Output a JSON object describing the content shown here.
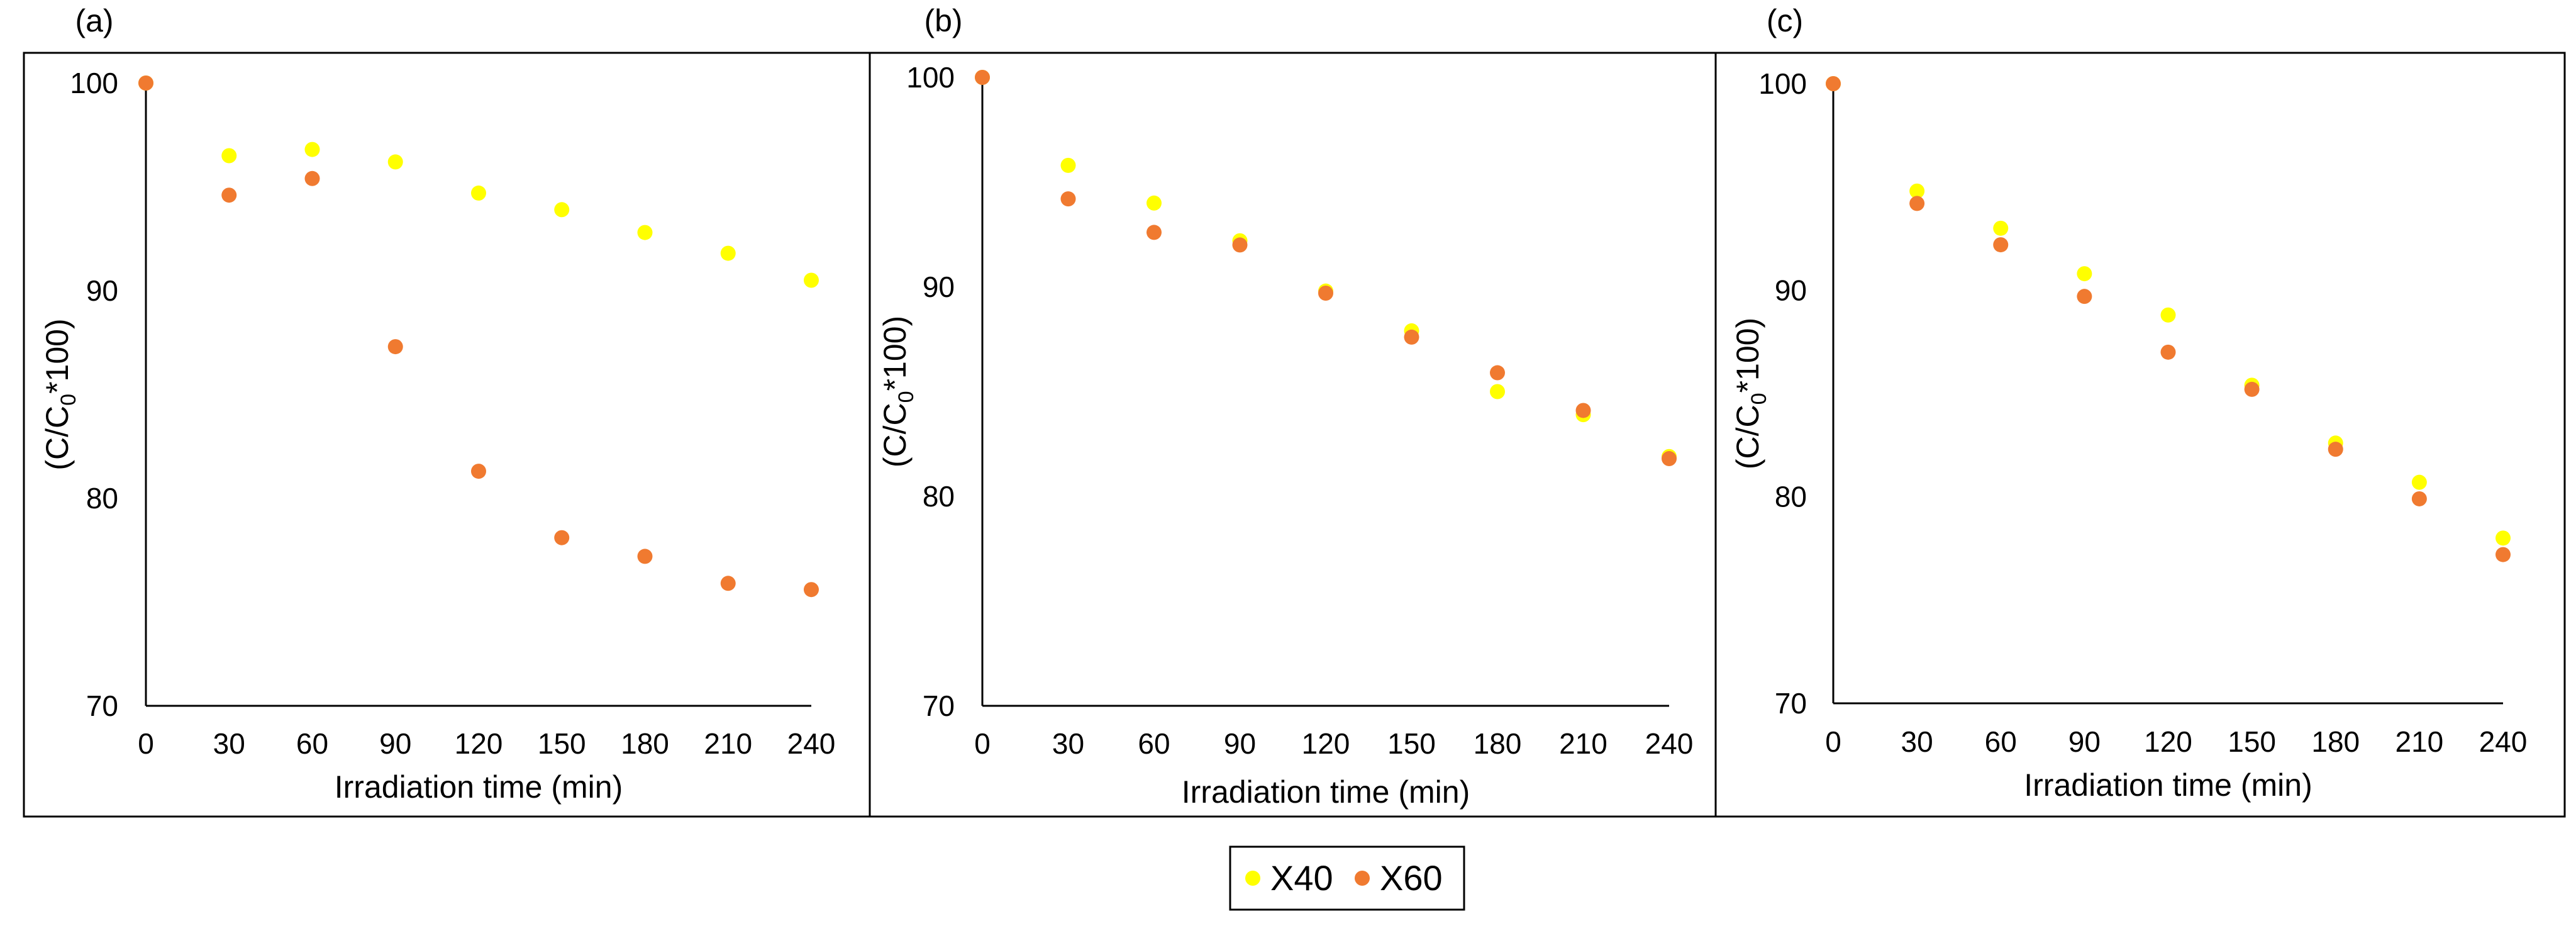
{
  "chart_data": [
    {
      "panel": "(a)",
      "type": "scatter",
      "xlabel": "Irradiation time (min)",
      "ylabel": "(C/C0*100)",
      "xlim": [
        0,
        240
      ],
      "ylim": [
        70,
        100
      ],
      "xticks": [
        "0",
        "30",
        "60",
        "90",
        "120",
        "150",
        "180",
        "210",
        "240"
      ],
      "yticks": [
        "70",
        "80",
        "90",
        "100"
      ],
      "x": [
        0,
        30,
        60,
        90,
        120,
        150,
        180,
        210,
        240
      ],
      "series": [
        {
          "name": "X40",
          "color": "#FFFF00",
          "values": [
            100,
            96.5,
            96.8,
            96.2,
            94.7,
            93.9,
            92.8,
            91.8,
            90.5
          ]
        },
        {
          "name": "X60",
          "color": "#F07A30",
          "values": [
            100,
            94.6,
            95.4,
            87.3,
            81.3,
            78.1,
            77.2,
            75.9,
            75.6
          ]
        }
      ]
    },
    {
      "panel": "(b)",
      "type": "scatter",
      "xlabel": "Irradiation time (min)",
      "ylabel": "(C/C0*100)",
      "xlim": [
        0,
        240
      ],
      "ylim": [
        70,
        100
      ],
      "xticks": [
        "0",
        "30",
        "60",
        "90",
        "120",
        "150",
        "180",
        "210",
        "240"
      ],
      "yticks": [
        "70",
        "80",
        "90",
        "100"
      ],
      "x": [
        0,
        30,
        60,
        90,
        120,
        150,
        180,
        210,
        240
      ],
      "series": [
        {
          "name": "X40",
          "color": "#FFFF00",
          "values": [
            100,
            95.8,
            94.0,
            92.2,
            89.8,
            87.9,
            85.0,
            83.9,
            81.9
          ]
        },
        {
          "name": "X60",
          "color": "#F07A30",
          "values": [
            100,
            94.2,
            92.6,
            92.0,
            89.7,
            87.6,
            85.9,
            84.1,
            81.8
          ]
        }
      ]
    },
    {
      "panel": "(c)",
      "type": "scatter",
      "xlabel": "Irradiation time (min)",
      "ylabel": "(C/C0*100)",
      "xlim": [
        0,
        240
      ],
      "ylim": [
        70,
        100
      ],
      "xticks": [
        "0",
        "30",
        "60",
        "90",
        "120",
        "150",
        "180",
        "210",
        "240"
      ],
      "yticks": [
        "70",
        "80",
        "90",
        "100"
      ],
      "x": [
        0,
        30,
        60,
        90,
        120,
        150,
        180,
        210,
        240
      ],
      "series": [
        {
          "name": "X40",
          "color": "#FFFF00",
          "values": [
            100,
            94.8,
            93.0,
            90.8,
            88.8,
            85.4,
            82.6,
            80.7,
            78.0
          ]
        },
        {
          "name": "X60",
          "color": "#F07A30",
          "values": [
            100,
            94.2,
            92.2,
            89.7,
            87.0,
            85.2,
            82.3,
            79.9,
            77.2
          ]
        }
      ]
    }
  ],
  "legend": {
    "placement": "bottom-center",
    "items": [
      {
        "label": "X40",
        "color": "#FFFF00"
      },
      {
        "label": "X60",
        "color": "#F07A30"
      }
    ]
  }
}
